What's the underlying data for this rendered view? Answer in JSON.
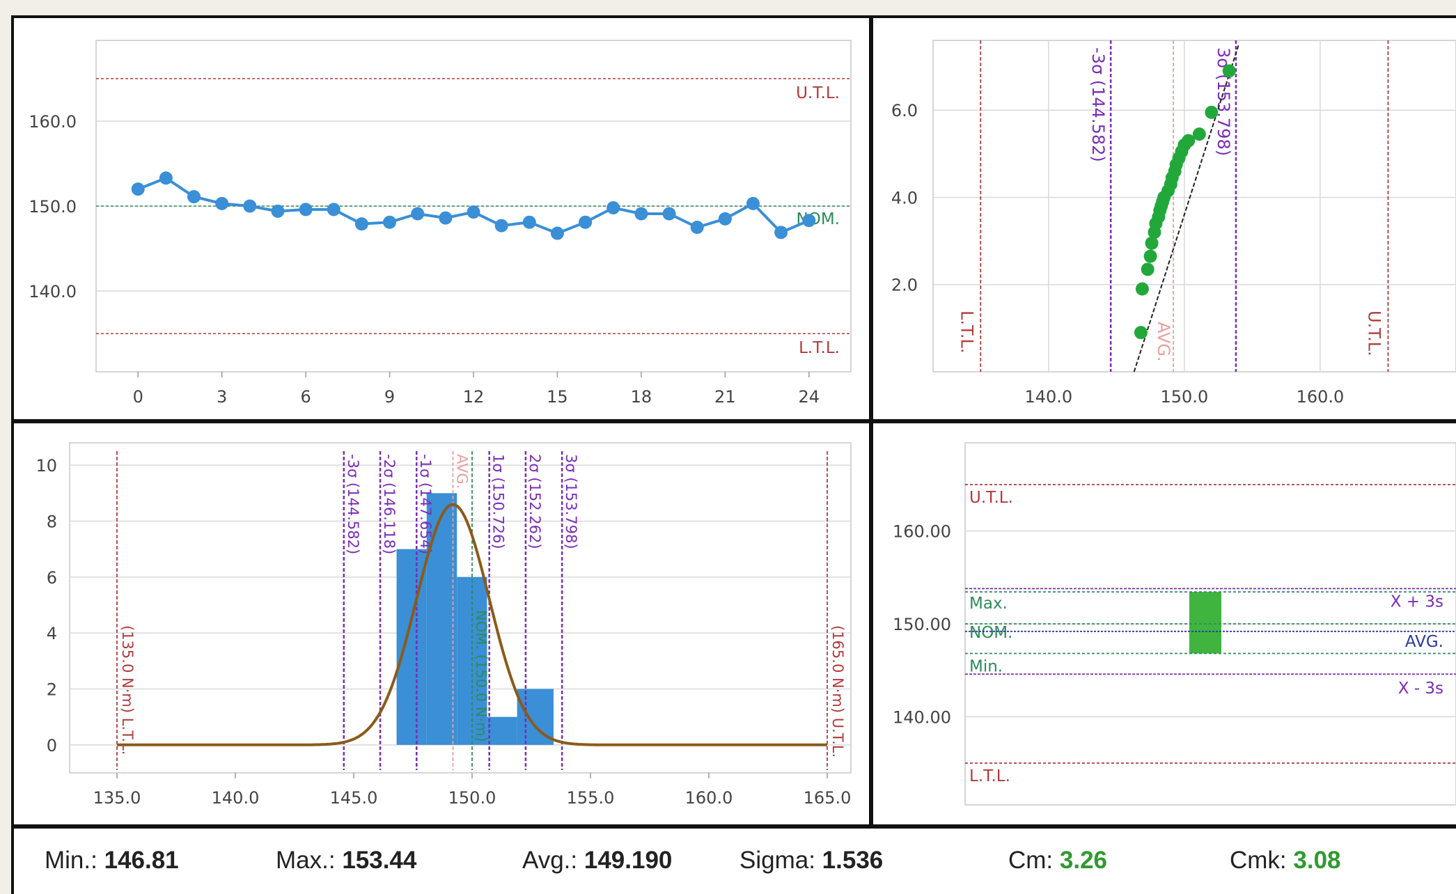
{
  "colors": {
    "run_series": "#3a8fd6",
    "prob_points": "#22a83a",
    "hist_bars": "#3a8fd6",
    "normal_curve": "#8b5a1a",
    "tolerance": "#b03a3a",
    "sigma": "#7a2cb8",
    "nominal": "#2e8a5a",
    "avg": "#e8a0a0",
    "box_fill": "#3fb53f",
    "good_value": "#2f9a2f"
  },
  "chart_data": [
    {
      "id": "run",
      "type": "line",
      "x": [
        0,
        1,
        2,
        3,
        4,
        5,
        6,
        7,
        8,
        9,
        10,
        11,
        12,
        13,
        14,
        15,
        16,
        17,
        18,
        19,
        20,
        21,
        22,
        23,
        24
      ],
      "values": [
        152.0,
        153.3,
        151.1,
        150.3,
        150.0,
        149.4,
        149.6,
        149.6,
        147.9,
        148.1,
        149.1,
        148.6,
        149.3,
        147.7,
        148.1,
        146.8,
        148.1,
        149.8,
        149.1,
        149.1,
        147.5,
        148.5,
        150.3,
        146.9,
        148.3
      ],
      "xticks": [
        "0",
        "3",
        "6",
        "9",
        "12",
        "15",
        "18",
        "21",
        "24"
      ],
      "xlim": [
        -1.5,
        25.5
      ],
      "yticks": [
        "140.0",
        "150.0",
        "160.0"
      ],
      "ylim": [
        130.5,
        169.5
      ],
      "hlines": [
        {
          "label": "U.T.L.",
          "value": 165
        },
        {
          "label": "NOM.",
          "value": 150
        },
        {
          "label": "L.T.L.",
          "value": 135
        }
      ],
      "grid": true
    },
    {
      "id": "probability",
      "type": "scatter",
      "points": [
        {
          "x": 146.8,
          "y": 0.9
        },
        {
          "x": 146.9,
          "y": 1.9
        },
        {
          "x": 147.3,
          "y": 2.35
        },
        {
          "x": 147.5,
          "y": 2.65
        },
        {
          "x": 147.6,
          "y": 2.95
        },
        {
          "x": 147.8,
          "y": 3.2
        },
        {
          "x": 147.9,
          "y": 3.4
        },
        {
          "x": 148.1,
          "y": 3.55
        },
        {
          "x": 148.2,
          "y": 3.7
        },
        {
          "x": 148.3,
          "y": 3.8
        },
        {
          "x": 148.4,
          "y": 3.9
        },
        {
          "x": 148.5,
          "y": 4.0
        },
        {
          "x": 148.8,
          "y": 4.15
        },
        {
          "x": 149.0,
          "y": 4.3
        },
        {
          "x": 149.1,
          "y": 4.45
        },
        {
          "x": 149.3,
          "y": 4.6
        },
        {
          "x": 149.4,
          "y": 4.75
        },
        {
          "x": 149.6,
          "y": 4.9
        },
        {
          "x": 149.8,
          "y": 5.05
        },
        {
          "x": 150.0,
          "y": 5.2
        },
        {
          "x": 150.3,
          "y": 5.3
        },
        {
          "x": 151.1,
          "y": 5.45
        },
        {
          "x": 152.0,
          "y": 5.95
        },
        {
          "x": 153.3,
          "y": 6.9
        }
      ],
      "fit_line": [
        [
          146.3,
          0.0
        ],
        [
          154.0,
          7.5
        ]
      ],
      "xticks": [
        "140.0",
        "150.0",
        "160.0"
      ],
      "xlim": [
        131.5,
        170.0
      ],
      "yticks": [
        "2.0",
        "4.0",
        "6.0"
      ],
      "ylim": [
        0.0,
        7.6
      ],
      "vlines": [
        {
          "label": "L.T.L.",
          "value": 135.0
        },
        {
          "label": "-3σ (144.582)",
          "value": 144.582
        },
        {
          "label": "AVG.",
          "value": 149.19
        },
        {
          "label": "3σ (153.798)",
          "value": 153.798
        },
        {
          "label": "U.T.L.",
          "value": 165.0
        }
      ],
      "grid": true
    },
    {
      "id": "histogram",
      "type": "bar",
      "bins": [
        {
          "from": 146.81,
          "to": 148.08,
          "count": 7
        },
        {
          "from": 148.08,
          "to": 149.36,
          "count": 9
        },
        {
          "from": 149.36,
          "to": 150.63,
          "count": 6
        },
        {
          "from": 150.63,
          "to": 151.9,
          "count": 1
        },
        {
          "from": 151.9,
          "to": 153.44,
          "count": 2
        }
      ],
      "curve": {
        "mean": 149.19,
        "sigma": 1.536,
        "peak": 8.6
      },
      "xticks": [
        "135.0",
        "140.0",
        "145.0",
        "150.0",
        "155.0",
        "160.0",
        "165.0"
      ],
      "xlim": [
        133.0,
        166.0
      ],
      "yticks": [
        "0",
        "2",
        "4",
        "6",
        "8",
        "10"
      ],
      "ylim": [
        -1.0,
        10.8
      ],
      "vlines": [
        {
          "label": "(135.0 N·m) L.T.L.",
          "value": 135.0
        },
        {
          "label": "-3σ (144.582)",
          "value": 144.582
        },
        {
          "label": "-2σ (146.118)",
          "value": 146.118
        },
        {
          "label": "-1σ (147.654)",
          "value": 147.654
        },
        {
          "label": "AVG.",
          "value": 149.19
        },
        {
          "label": "NOM. (150.0 N·m)",
          "value": 150.0
        },
        {
          "label": "1σ (150.726)",
          "value": 150.726
        },
        {
          "label": "2σ (152.262)",
          "value": 152.262
        },
        {
          "label": "3σ (153.798)",
          "value": 153.798
        },
        {
          "label": "(165.0 N·m) U.T.L.",
          "value": 165.0
        }
      ],
      "grid": true
    },
    {
      "id": "summary",
      "type": "box",
      "yticks": [
        "140.00",
        "150.00",
        "160.00"
      ],
      "ylim": [
        130.5,
        169.5
      ],
      "box": {
        "low": 146.81,
        "high": 153.44
      },
      "hlines": [
        {
          "label": "U.T.L.",
          "value": 165.0
        },
        {
          "label": "X + 3s",
          "value": 153.798
        },
        {
          "label": "Max.",
          "value": 153.44
        },
        {
          "label": "NOM.",
          "value": 150.0
        },
        {
          "label": "AVG.",
          "value": 149.19
        },
        {
          "label": "Min.",
          "value": 146.81
        },
        {
          "label": "X - 3s",
          "value": 144.582
        },
        {
          "label": "L.T.L.",
          "value": 135.0
        }
      ],
      "grid": true
    }
  ],
  "stats": {
    "min_label": "Min.:",
    "min_value": "146.81",
    "max_label": "Max.:",
    "max_value": "153.44",
    "avg_label": "Avg.:",
    "avg_value": "149.190",
    "sigma_label": "Sigma:",
    "sigma_value": "1.536",
    "cm_label": "Cm:",
    "cm_value": "3.26",
    "cmk_label": "Cmk:",
    "cmk_value": "3.08"
  }
}
